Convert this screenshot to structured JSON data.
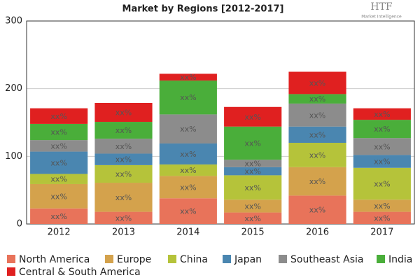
{
  "chart_data": {
    "type": "stacked_bar",
    "title": "Market by Regions [2012-2017]",
    "logo": {
      "text": "HTF",
      "subtext": "Market Intelligence"
    },
    "categories": [
      "2012",
      "2013",
      "2014",
      "2015",
      "2016",
      "2017"
    ],
    "series": [
      {
        "name": "North America",
        "color": "#e8735a",
        "values": [
          23,
          18,
          38,
          17,
          42,
          18
        ],
        "value_labels": [
          "xx%",
          "xx%",
          "xx%",
          "xx%",
          "xx%",
          "xx%"
        ]
      },
      {
        "name": "Europe",
        "color": "#d4a24c",
        "values": [
          36,
          43,
          33,
          19,
          42,
          18
        ],
        "value_labels": [
          "xx%",
          "xx%",
          "xx%",
          "xx%",
          "xx%",
          "xx%"
        ]
      },
      {
        "name": "China",
        "color": "#b5c33a",
        "values": [
          15,
          26,
          17,
          36,
          36,
          47
        ],
        "value_labels": [
          "xx%",
          "xx%",
          "xx%",
          "xx%",
          "xx%",
          "xx%"
        ]
      },
      {
        "name": "Japan",
        "color": "#4a86b0",
        "values": [
          33,
          17,
          31,
          12,
          24,
          19
        ],
        "value_labels": [
          "xx%",
          "xx%",
          "xx%",
          "xx%",
          "xx%",
          "xx%"
        ]
      },
      {
        "name": "Southeast Asia",
        "color": "#8c8c8c",
        "values": [
          17,
          22,
          43,
          11,
          34,
          25
        ],
        "value_labels": [
          "xx%",
          "xx%",
          "xx%",
          "xx%",
          "xx%",
          "xx%"
        ]
      },
      {
        "name": "India",
        "color": "#4aae3a",
        "values": [
          24,
          25,
          50,
          49,
          14,
          27
        ],
        "value_labels": [
          "xx%",
          "xx%",
          "xx%",
          "xx%",
          "xx%",
          "xx%"
        ]
      },
      {
        "name": "Central & South America",
        "color": "#e02020",
        "values": [
          23,
          28,
          10,
          29,
          33,
          17
        ],
        "value_labels": [
          "xx%",
          "xx%",
          "xx%",
          "xx%",
          "xx%",
          "xx%"
        ]
      }
    ],
    "ylim": [
      0,
      300
    ],
    "yticks": [
      0,
      100,
      200,
      300
    ],
    "grid": true,
    "legend": "bottom"
  }
}
